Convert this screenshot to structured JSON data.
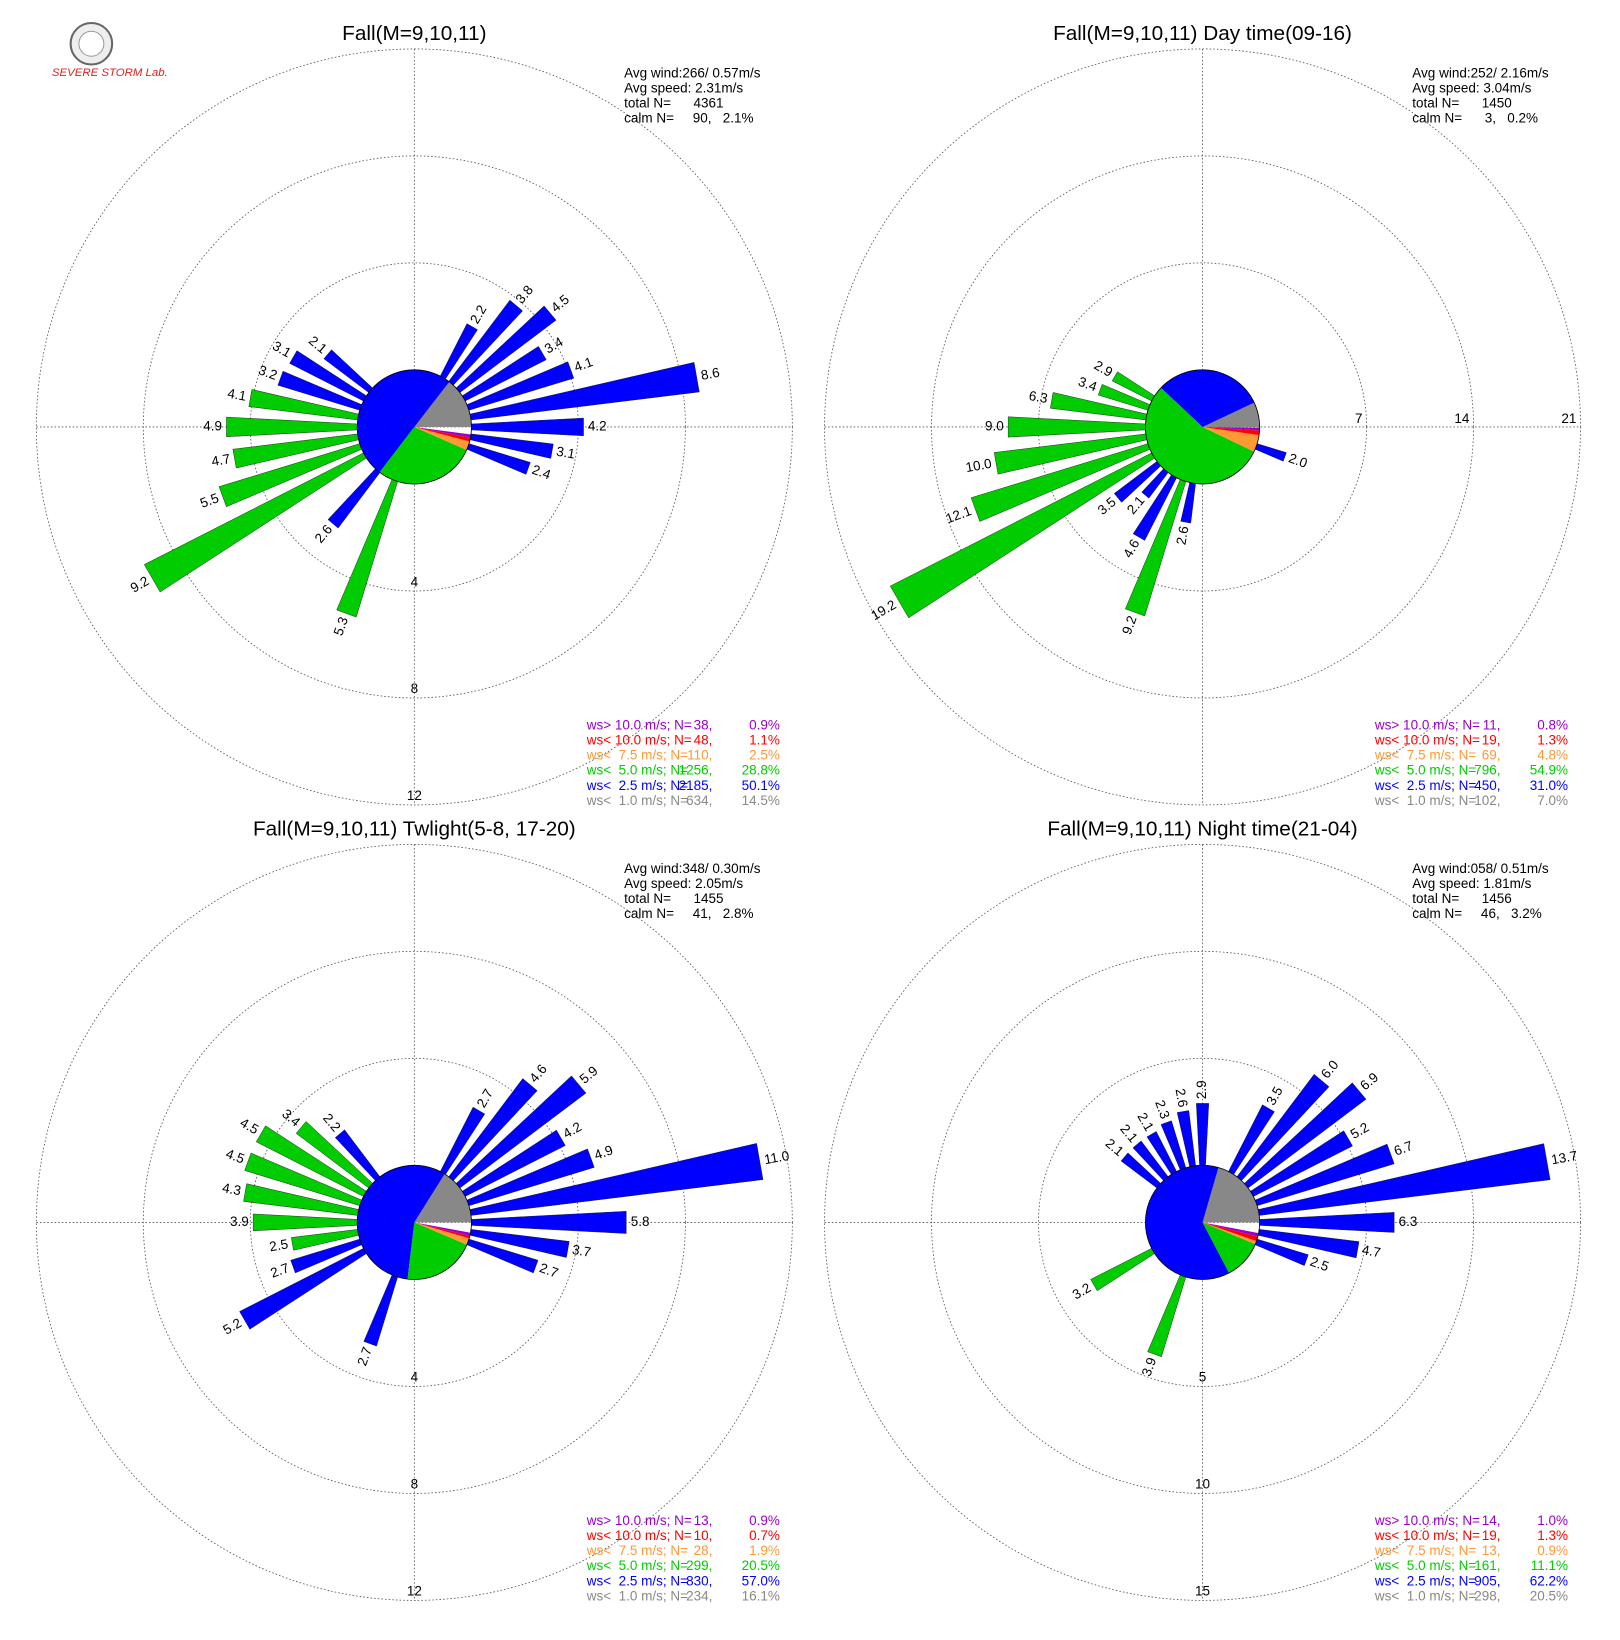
{
  "logo": "SEVERE STORM Lab.",
  "chart_data": [
    {
      "type": "windrose",
      "title": "Fall(M=9,10,11)",
      "stats": [
        "Avg wind:266/ 0.57m/s",
        "Avg speed: 2.31m/s",
        "total N=      4361",
        "calm N=     90,   2.1%"
      ],
      "rlim": [
        0,
        12
      ],
      "rticks": [
        4,
        8,
        12
      ],
      "ring_label_side": "south",
      "classes": [
        {
          "name": "ws> 10.0 m/s; N=",
          "color": "#9900cc",
          "n_label": "38,",
          "pct": 0.9,
          "pct_label": "0.9%"
        },
        {
          "name": "ws< 10.0 m/s; N=",
          "color": "#ff0000",
          "n_label": "48,",
          "pct": 1.1,
          "pct_label": "1.1%"
        },
        {
          "name": "ws<  7.5 m/s; N=",
          "color": "#ff9933",
          "n_label": "110,",
          "pct": 2.5,
          "pct_label": "2.5%"
        },
        {
          "name": "ws<  5.0 m/s; N=",
          "color": "#00cc00",
          "n_label": "1256,",
          "pct": 28.8,
          "pct_label": "28.8%"
        },
        {
          "name": "ws<  2.5 m/s; N=",
          "color": "#0000ff",
          "n_label": "2185,",
          "pct": 50.1,
          "pct_label": "50.1%"
        },
        {
          "name": "ws<  1.0 m/s; N=",
          "color": "#888888",
          "n_label": "634,",
          "pct": 14.5,
          "pct_label": "14.5%"
        }
      ],
      "bars": {
        "directions": [
          80,
          90,
          100,
          110,
          70,
          60,
          50,
          40,
          30,
          310,
          300,
          290,
          280,
          270,
          260,
          250,
          240,
          220,
          200
        ],
        "values": [
          8.6,
          4.2,
          3.1,
          2.4,
          4.1,
          3.4,
          4.5,
          3.8,
          2.2,
          2.1,
          3.1,
          3.2,
          4.1,
          4.9,
          4.7,
          5.5,
          9.2,
          2.6,
          5.3
        ],
        "value_labels": [
          "8.6",
          "4.2",
          "3.1",
          "2.4",
          "4.1",
          "3.4",
          "4.5",
          "3.8",
          "2.2",
          "2.1",
          "3.1",
          "3.2",
          "4.1",
          "4.9",
          "4.7",
          "5.5",
          "9.2",
          "2.6",
          "5.3"
        ],
        "colors": [
          "#0000ff",
          "#0000ff",
          "#0000ff",
          "#0000ff",
          "#0000ff",
          "#0000ff",
          "#0000ff",
          "#0000ff",
          "#0000ff",
          "#0000ff",
          "#0000ff",
          "#0000ff",
          "#00cc00",
          "#00cc00",
          "#00cc00",
          "#00cc00",
          "#00cc00",
          "#0000ff",
          "#00cc00"
        ]
      }
    },
    {
      "type": "windrose",
      "title": "Fall(M=9,10,11) Day time(09-16)",
      "stats": [
        "Avg wind:252/ 2.16m/s",
        "Avg speed: 3.04m/s",
        "total N=      1450",
        "calm N=      3,   0.2%"
      ],
      "rlim": [
        0,
        21
      ],
      "rticks": [
        7,
        14,
        21
      ],
      "ring_label_side": "east",
      "classes": [
        {
          "name": "ws> 10.0 m/s; N=",
          "color": "#9900cc",
          "n_label": "11,",
          "pct": 0.8,
          "pct_label": "0.8%"
        },
        {
          "name": "ws< 10.0 m/s; N=",
          "color": "#ff0000",
          "n_label": "19,",
          "pct": 1.3,
          "pct_label": "1.3%"
        },
        {
          "name": "ws<  7.5 m/s; N=",
          "color": "#ff9933",
          "n_label": "69,",
          "pct": 4.8,
          "pct_label": "4.8%"
        },
        {
          "name": "ws<  5.0 m/s; N=",
          "color": "#00cc00",
          "n_label": "796,",
          "pct": 54.9,
          "pct_label": "54.9%"
        },
        {
          "name": "ws<  2.5 m/s; N=",
          "color": "#0000ff",
          "n_label": "450,",
          "pct": 31.0,
          "pct_label": "31.0%"
        },
        {
          "name": "ws<  1.0 m/s; N=",
          "color": "#888888",
          "n_label": "102,",
          "pct": 7.0,
          "pct_label": "7.0%"
        }
      ],
      "bars": {
        "directions": [
          110,
          300,
          290,
          280,
          270,
          260,
          250,
          240,
          230,
          220,
          210,
          200,
          190
        ],
        "values": [
          2.0,
          2.9,
          3.4,
          6.3,
          9.0,
          10.0,
          12.1,
          19.2,
          3.5,
          2.1,
          4.6,
          9.2,
          2.6
        ],
        "value_labels": [
          "2.0",
          "2.9",
          "3.4",
          "6.3",
          "9.0",
          "10.0",
          "12.1",
          "19.2",
          "3.5",
          "2.1",
          "4.6",
          "9.2",
          "2.6"
        ],
        "colors": [
          "#0000ff",
          "#00cc00",
          "#00cc00",
          "#00cc00",
          "#00cc00",
          "#00cc00",
          "#00cc00",
          "#00cc00",
          "#0000ff",
          "#0000ff",
          "#0000ff",
          "#00cc00",
          "#0000ff"
        ]
      }
    },
    {
      "type": "windrose",
      "title": "Fall(M=9,10,11) Twlight(5-8, 17-20)",
      "stats": [
        "Avg wind:348/ 0.30m/s",
        "Avg speed: 2.05m/s",
        "total N=      1455",
        "calm N=     41,   2.8%"
      ],
      "rlim": [
        0,
        12
      ],
      "rticks": [
        4,
        8,
        12
      ],
      "ring_label_side": "south",
      "classes": [
        {
          "name": "ws> 10.0 m/s; N=",
          "color": "#9900cc",
          "n_label": "13,",
          "pct": 0.9,
          "pct_label": "0.9%"
        },
        {
          "name": "ws< 10.0 m/s; N=",
          "color": "#ff0000",
          "n_label": "10,",
          "pct": 0.7,
          "pct_label": "0.7%"
        },
        {
          "name": "ws<  7.5 m/s; N=",
          "color": "#ff9933",
          "n_label": "28,",
          "pct": 1.9,
          "pct_label": "1.9%"
        },
        {
          "name": "ws<  5.0 m/s; N=",
          "color": "#00cc00",
          "n_label": "299,",
          "pct": 20.5,
          "pct_label": "20.5%"
        },
        {
          "name": "ws<  2.5 m/s; N=",
          "color": "#0000ff",
          "n_label": "830,",
          "pct": 57.0,
          "pct_label": "57.0%"
        },
        {
          "name": "ws<  1.0 m/s; N=",
          "color": "#888888",
          "n_label": "234,",
          "pct": 16.1,
          "pct_label": "16.1%"
        }
      ],
      "bars": {
        "directions": [
          80,
          90,
          100,
          110,
          70,
          60,
          50,
          40,
          30,
          320,
          310,
          300,
          290,
          280,
          270,
          260,
          250,
          240,
          200
        ],
        "values": [
          11.0,
          5.8,
          3.7,
          2.7,
          4.9,
          4.2,
          5.9,
          4.6,
          2.7,
          2.2,
          3.4,
          4.5,
          4.5,
          4.3,
          3.9,
          2.5,
          2.7,
          5.2,
          2.7
        ],
        "value_labels": [
          "11.0",
          "5.8",
          "3.7",
          "2.7",
          "4.9",
          "4.2",
          "5.9",
          "4.6",
          "2.7",
          "2.2",
          "3.4",
          "4.5",
          "4.5",
          "4.3",
          "3.9",
          "2.5",
          "2.7",
          "5.2",
          "2.7"
        ],
        "colors": [
          "#0000ff",
          "#0000ff",
          "#0000ff",
          "#0000ff",
          "#0000ff",
          "#0000ff",
          "#0000ff",
          "#0000ff",
          "#0000ff",
          "#0000ff",
          "#00cc00",
          "#00cc00",
          "#00cc00",
          "#00cc00",
          "#00cc00",
          "#00cc00",
          "#0000ff",
          "#0000ff",
          "#0000ff"
        ]
      }
    },
    {
      "type": "windrose",
      "title": "Fall(M=9,10,11) Night time(21-04)",
      "stats": [
        "Avg wind:058/ 0.51m/s",
        "Avg speed: 1.81m/s",
        "total N=      1456",
        "calm N=     46,   3.2%"
      ],
      "rlim": [
        0,
        15
      ],
      "rticks": [
        5,
        10,
        15
      ],
      "ring_label_side": "south",
      "classes": [
        {
          "name": "ws> 10.0 m/s; N=",
          "color": "#9900cc",
          "n_label": "14,",
          "pct": 1.0,
          "pct_label": "1.0%"
        },
        {
          "name": "ws< 10.0 m/s; N=",
          "color": "#ff0000",
          "n_label": "19,",
          "pct": 1.3,
          "pct_label": "1.3%"
        },
        {
          "name": "ws<  7.5 m/s; N=",
          "color": "#ff9933",
          "n_label": "13,",
          "pct": 0.9,
          "pct_label": "0.9%"
        },
        {
          "name": "ws<  5.0 m/s; N=",
          "color": "#00cc00",
          "n_label": "161,",
          "pct": 11.1,
          "pct_label": "11.1%"
        },
        {
          "name": "ws<  2.5 m/s; N=",
          "color": "#0000ff",
          "n_label": "905,",
          "pct": 62.2,
          "pct_label": "62.2%"
        },
        {
          "name": "ws<  1.0 m/s; N=",
          "color": "#888888",
          "n_label": "298,",
          "pct": 20.5,
          "pct_label": "20.5%"
        }
      ],
      "bars": {
        "directions": [
          80,
          90,
          100,
          110,
          70,
          60,
          50,
          40,
          30,
          0,
          350,
          340,
          330,
          320,
          310,
          240,
          200
        ],
        "values": [
          13.7,
          6.3,
          4.7,
          2.5,
          6.7,
          5.2,
          6.9,
          6.0,
          3.5,
          2.9,
          2.6,
          2.3,
          2.1,
          2.1,
          2.1,
          3.2,
          3.9
        ],
        "value_labels": [
          "13.7",
          "6.3",
          "4.7",
          "2.5",
          "6.7",
          "5.2",
          "6.9",
          "6.0",
          "3.5",
          "2.9",
          "2.6",
          "2.3",
          "2.1",
          "2.1",
          "2.1",
          "3.2",
          "3.9"
        ],
        "colors": [
          "#0000ff",
          "#0000ff",
          "#0000ff",
          "#0000ff",
          "#0000ff",
          "#0000ff",
          "#0000ff",
          "#0000ff",
          "#0000ff",
          "#0000ff",
          "#0000ff",
          "#0000ff",
          "#0000ff",
          "#0000ff",
          "#0000ff",
          "#00cc00",
          "#00cc00"
        ]
      }
    }
  ]
}
